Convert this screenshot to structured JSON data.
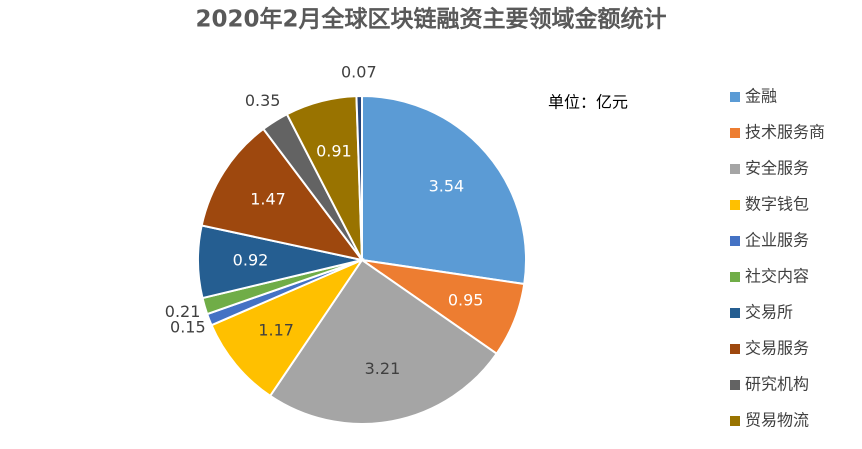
{
  "chart_data": {
    "type": "pie",
    "title": "2020年2月全球区块链融资主要领域金额统计",
    "annotation": "单位：亿元",
    "categories": [
      "金融",
      "技术服务商",
      "安全服务",
      "数字钱包",
      "企业服务",
      "社交内容",
      "交易所",
      "交易服务",
      "研究机构",
      "贸易物流",
      null
    ],
    "values": [
      3.54,
      0.95,
      3.21,
      1.17,
      0.15,
      0.21,
      0.92,
      1.47,
      0.35,
      0.91,
      0.07
    ],
    "colors": [
      "#5b9bd5",
      "#ed7d31",
      "#a5a5a5",
      "#ffc000",
      "#4472c4",
      "#70ad47",
      "#255e91",
      "#9e480e",
      "#636363",
      "#997300",
      "#264478"
    ],
    "legend": "right"
  }
}
